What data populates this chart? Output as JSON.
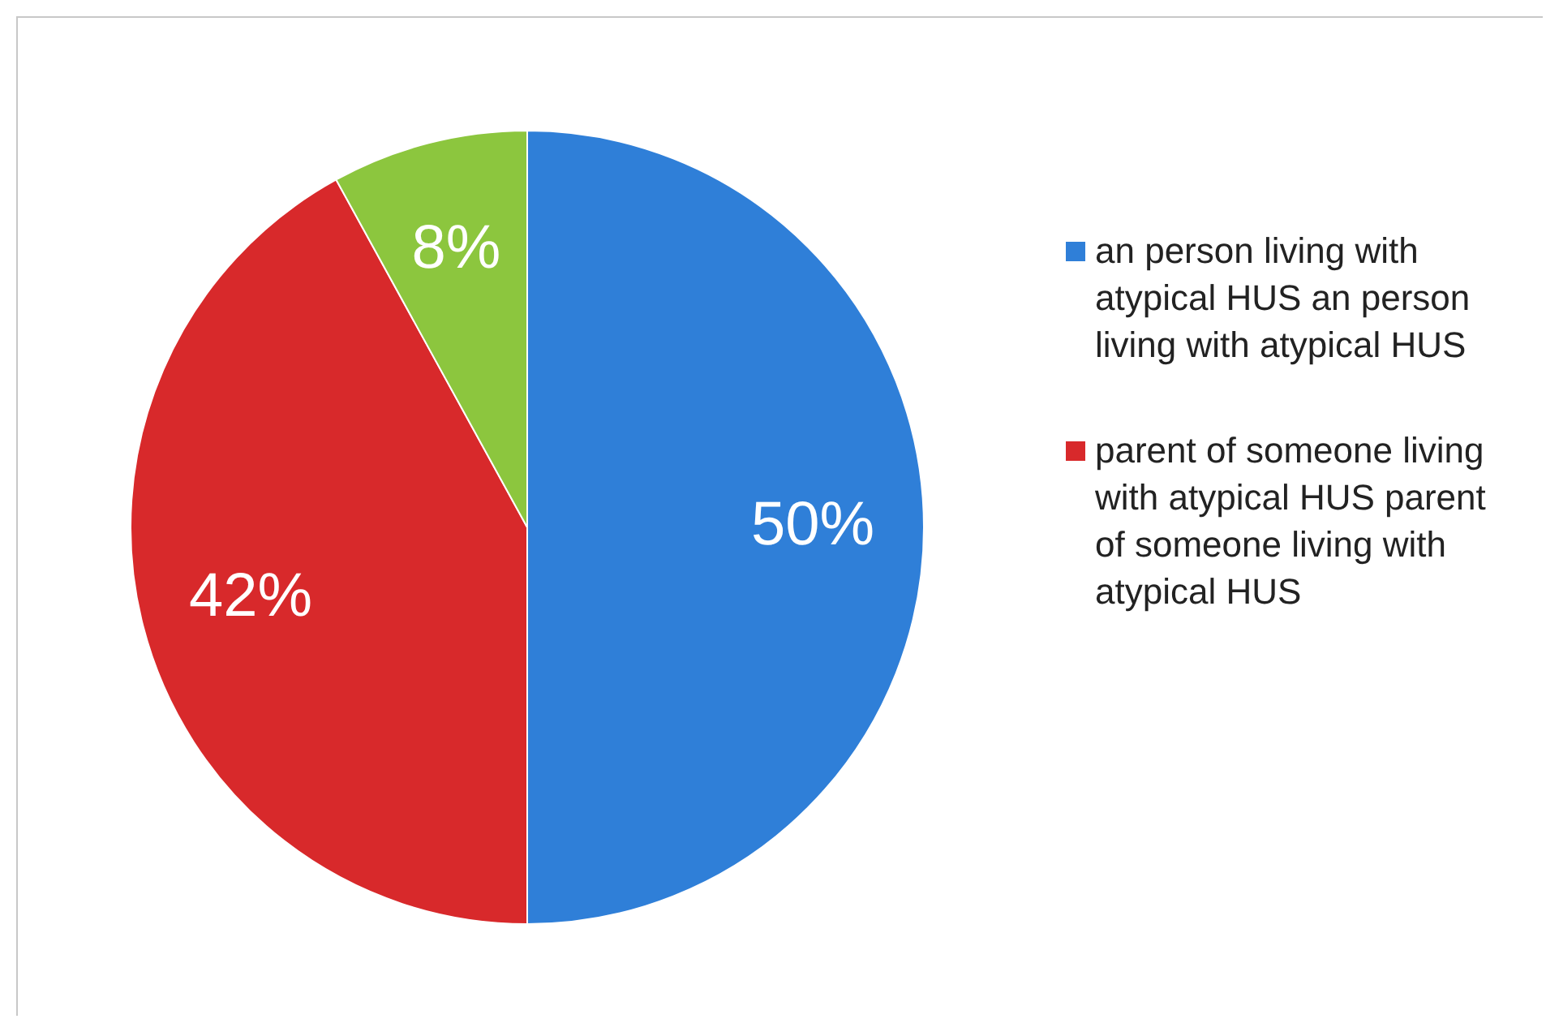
{
  "chart_data": {
    "type": "pie",
    "categories": [
      "an person living with atypical HUS an person living with atypical HUS",
      "parent of someone living with atypical HUS parent of someone living with atypical HUS",
      null
    ],
    "values": [
      50,
      42,
      8
    ],
    "colors": [
      "#2f7fd8",
      "#d8292b",
      "#8cc63e"
    ],
    "value_labels": [
      "50%",
      "42%",
      "8%"
    ],
    "legend": "right"
  }
}
